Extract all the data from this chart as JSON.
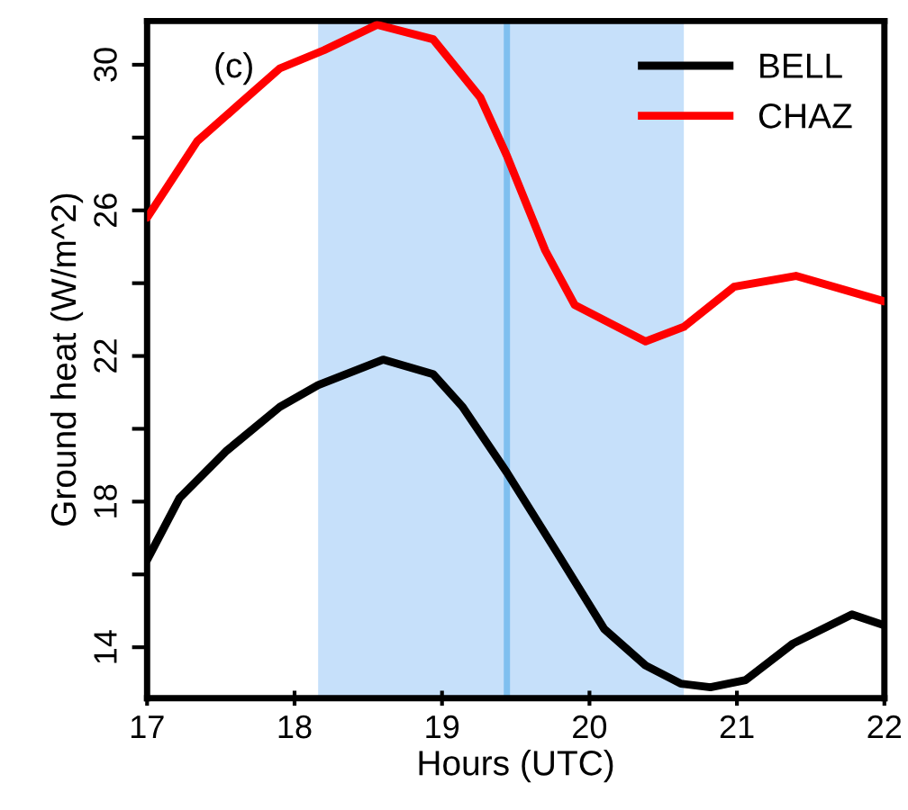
{
  "chart_data": {
    "type": "line",
    "xlabel": "Hours (UTC)",
    "ylabel": "Ground heat (W/m^2)",
    "annotations": [
      "(c)"
    ],
    "series": [
      {
        "name": "BELL",
        "color": "#000000",
        "x": [
          17,
          17.22,
          17.54,
          17.9,
          18.16,
          18.6,
          18.94,
          19.14,
          19.44,
          19.78,
          20.1,
          20.38,
          20.62,
          20.82,
          21.06,
          21.38,
          21.78,
          22
        ],
        "values": [
          16.4,
          18.1,
          19.4,
          20.6,
          21.2,
          21.9,
          21.5,
          20.6,
          18.8,
          16.6,
          14.5,
          13.5,
          13.0,
          12.9,
          13.1,
          14.1,
          14.9,
          14.6
        ]
      },
      {
        "name": "CHAZ",
        "color": "#ff0000",
        "x": [
          17,
          17.34,
          17.62,
          17.9,
          18.2,
          18.56,
          18.94,
          19.26,
          19.44,
          19.7,
          19.9,
          20.38,
          20.64,
          20.98,
          21.4,
          22
        ],
        "values": [
          25.8,
          27.9,
          28.9,
          29.9,
          30.4,
          31.1,
          30.7,
          29.1,
          27.5,
          24.9,
          23.4,
          22.4,
          22.8,
          23.9,
          24.2,
          23.5
        ]
      }
    ],
    "xlim": [
      17,
      22
    ],
    "xticks": [
      17,
      18,
      19,
      20,
      21,
      22
    ],
    "ylim": [
      12.6,
      31.2
    ],
    "yticks": [
      14,
      {
        "value": 16,
        "label": null
      },
      18,
      {
        "value": 20,
        "label": null
      },
      22,
      {
        "value": 24,
        "label": null
      },
      26,
      {
        "value": 28,
        "label": null
      },
      30
    ],
    "bands": [
      {
        "axis": "x",
        "from": 18.16,
        "to": 20.64,
        "color": "#c6e0fa"
      }
    ],
    "ref_lines": [
      {
        "axis": "x",
        "value": 19.44,
        "color": "#7fbfef"
      }
    ],
    "legend": "top right",
    "grid": false,
    "line_style": "solid",
    "marker": "none"
  }
}
